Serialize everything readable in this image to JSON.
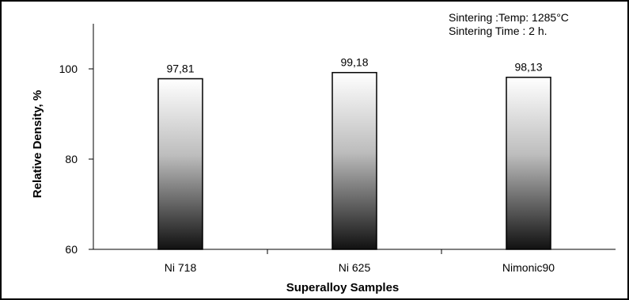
{
  "chart_data": {
    "type": "bar",
    "categories": [
      "Ni 718",
      "Ni 625",
      "Nimonic90"
    ],
    "values": [
      97.81,
      99.18,
      98.13
    ],
    "data_labels": [
      "97,81",
      "99,18",
      "98,13"
    ],
    "title": "",
    "xlabel": "Superalloy Samples",
    "ylabel": "Relative Density, %",
    "ylim": [
      60,
      110
    ],
    "yticks": [
      60,
      80,
      100
    ],
    "grid": false,
    "annotations": [
      "Sintering :Temp: 1285°C",
      "Sintering Time : 2 h."
    ],
    "bar_fill": "gradient white-to-black (top to bottom)",
    "colors": {
      "bar_top": "#ffffff",
      "bar_bottom": "#111111",
      "axis": "#000000"
    }
  }
}
